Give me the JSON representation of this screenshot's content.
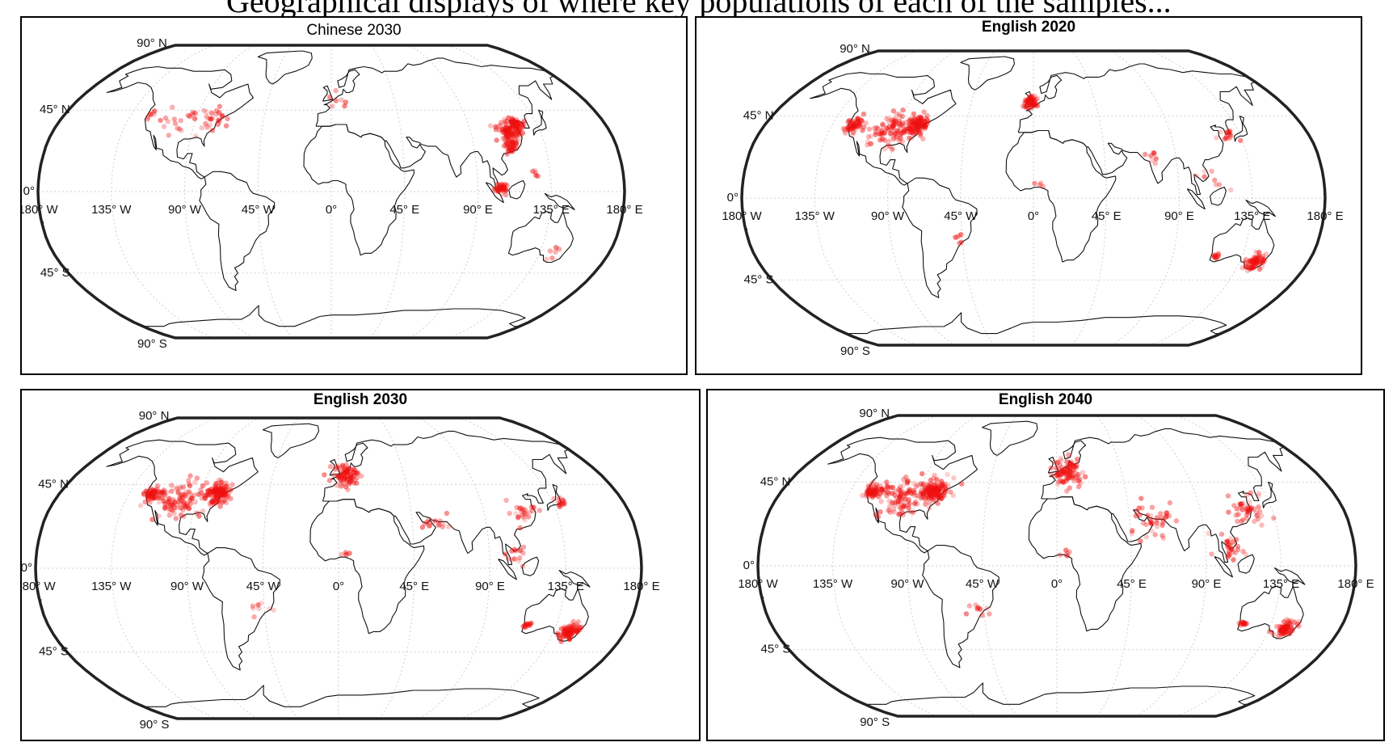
{
  "caption": {
    "text": "Geographical displays of where key populations of each of the samples..."
  },
  "colors": {
    "point": "#f01010",
    "coast": "#111111",
    "frame": "#222222",
    "graticule": "#cfcfcf"
  },
  "panels": [
    {
      "title": "Chinese 2030",
      "title_bold": false,
      "lat_labels": [
        "90° N",
        "45° N",
        "0°",
        "45° S",
        "90° S"
      ],
      "lon_labels": [
        "180° W",
        "135° W",
        "90° W",
        "45° W",
        "0°",
        "45° E",
        "90° E",
        "135° E",
        "180° E"
      ],
      "clusters": [
        {
          "lon": 115,
          "lat": 33,
          "spread": 6,
          "count": 90
        },
        {
          "lon": 121,
          "lat": 37,
          "spread": 4,
          "count": 50
        },
        {
          "lon": 113,
          "lat": 25,
          "spread": 4,
          "count": 40
        },
        {
          "lon": 104,
          "lat": 2,
          "spread": 3,
          "count": 40
        },
        {
          "lon": -80,
          "lat": 40,
          "spread": 9,
          "count": 30
        },
        {
          "lon": -100,
          "lat": 38,
          "spread": 12,
          "count": 15
        },
        {
          "lon": -122,
          "lat": 42,
          "spread": 4,
          "count": 8
        },
        {
          "lon": 5,
          "lat": 50,
          "spread": 6,
          "count": 8
        },
        {
          "lon": 145,
          "lat": -33,
          "spread": 4,
          "count": 6
        },
        {
          "lon": 125,
          "lat": 10,
          "spread": 3,
          "count": 5
        }
      ]
    },
    {
      "title": "English 2020",
      "title_bold": true,
      "lat_labels": [
        "90° N",
        "45° N",
        "0°",
        "45° S",
        "90° S"
      ],
      "lon_labels": [
        "180° W",
        "135° W",
        "90° W",
        "45° W",
        "0°",
        "45° E",
        "90° E",
        "135° E",
        "180° E"
      ],
      "clusters": [
        {
          "lon": -78,
          "lat": 40,
          "spread": 7,
          "count": 120
        },
        {
          "lon": -95,
          "lat": 38,
          "spread": 12,
          "count": 90
        },
        {
          "lon": -120,
          "lat": 40,
          "spread": 5,
          "count": 60
        },
        {
          "lon": -2,
          "lat": 53,
          "spread": 4,
          "count": 70
        },
        {
          "lon": 145,
          "lat": -35,
          "spread": 5,
          "count": 70
        },
        {
          "lon": 118,
          "lat": -32,
          "spread": 2,
          "count": 12
        },
        {
          "lon": 77,
          "lat": 22,
          "spread": 5,
          "count": 8
        },
        {
          "lon": 130,
          "lat": 34,
          "spread": 6,
          "count": 15
        },
        {
          "lon": 110,
          "lat": 10,
          "spread": 8,
          "count": 8
        },
        {
          "lon": -48,
          "lat": -22,
          "spread": 4,
          "count": 6
        },
        {
          "lon": 5,
          "lat": 8,
          "spread": 3,
          "count": 4
        }
      ]
    },
    {
      "title": "English 2030",
      "title_bold": true,
      "lat_labels": [
        "90° N",
        "45° N",
        "0°",
        "45° S",
        "90° S"
      ],
      "lon_labels": [
        "180° W",
        "135° W",
        "90° W",
        "45° W",
        "0°",
        "45° E",
        "90° E",
        "135° E",
        "180° E"
      ],
      "clusters": [
        {
          "lon": -78,
          "lat": 40,
          "spread": 7,
          "count": 130
        },
        {
          "lon": -100,
          "lat": 37,
          "spread": 12,
          "count": 100
        },
        {
          "lon": -120,
          "lat": 40,
          "spread": 5,
          "count": 60
        },
        {
          "lon": 5,
          "lat": 50,
          "spread": 7,
          "count": 90
        },
        {
          "lon": 145,
          "lat": -34,
          "spread": 5,
          "count": 90
        },
        {
          "lon": 117,
          "lat": -31,
          "spread": 2,
          "count": 15
        },
        {
          "lon": 140,
          "lat": 36,
          "spread": 3,
          "count": 15
        },
        {
          "lon": 115,
          "lat": 28,
          "spread": 8,
          "count": 25
        },
        {
          "lon": 105,
          "lat": 8,
          "spread": 6,
          "count": 15
        },
        {
          "lon": 60,
          "lat": 25,
          "spread": 8,
          "count": 15
        },
        {
          "lon": -48,
          "lat": -22,
          "spread": 5,
          "count": 8
        },
        {
          "lon": 5,
          "lat": 7,
          "spread": 3,
          "count": 5
        }
      ]
    },
    {
      "title": "English 2040",
      "title_bold": true,
      "lat_labels": [
        "90° N",
        "45° N",
        "0°",
        "45° S",
        "90° S"
      ],
      "lon_labels": [
        "180° W",
        "135° W",
        "90° W",
        "45° W",
        "0°",
        "45° E",
        "90° E",
        "135° E",
        "180° E"
      ],
      "clusters": [
        {
          "lon": -80,
          "lat": 40,
          "spread": 8,
          "count": 140
        },
        {
          "lon": -100,
          "lat": 37,
          "spread": 13,
          "count": 110
        },
        {
          "lon": -120,
          "lat": 40,
          "spread": 5,
          "count": 60
        },
        {
          "lon": 8,
          "lat": 50,
          "spread": 9,
          "count": 100
        },
        {
          "lon": 145,
          "lat": -34,
          "spread": 5,
          "count": 70
        },
        {
          "lon": 117,
          "lat": -31,
          "spread": 2,
          "count": 15
        },
        {
          "lon": 120,
          "lat": 30,
          "spread": 10,
          "count": 50
        },
        {
          "lon": 105,
          "lat": 10,
          "spread": 8,
          "count": 30
        },
        {
          "lon": 60,
          "lat": 25,
          "spread": 12,
          "count": 40
        },
        {
          "lon": -48,
          "lat": -23,
          "spread": 5,
          "count": 10
        },
        {
          "lon": 5,
          "lat": 7,
          "spread": 3,
          "count": 6
        }
      ]
    }
  ]
}
